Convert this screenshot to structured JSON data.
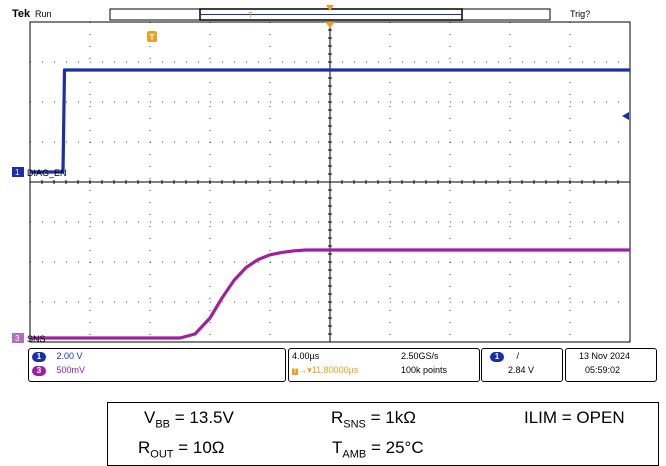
{
  "header": {
    "brand": "Tek",
    "run_state": "Run",
    "trigger_state": "Trig?"
  },
  "markers": {
    "trigger_position_label": "T"
  },
  "channels": [
    {
      "id": "1",
      "label": "DIAG_EN",
      "color": "#1a2ea8",
      "scale": "2.00 V"
    },
    {
      "id": "3",
      "label": "SNS",
      "color": "#a020a0",
      "scale": "500mV"
    }
  ],
  "status": {
    "timebase": "4.00µs",
    "trigger_offset": "11.80000µs",
    "sample_rate": "2.50GS/s",
    "record_length": "100k points",
    "trigger_channel": "1",
    "trigger_slope": "/",
    "trigger_level": "2.84 V",
    "date": "13 Nov 2024",
    "time": "05:59:02"
  },
  "conditions": {
    "vbb": {
      "sym": "V",
      "sub": "BB",
      "val": " = 13.5V"
    },
    "rsns": {
      "sym": "R",
      "sub": "SNS",
      "val": " = 1kΩ"
    },
    "ilim": "ILIM = OPEN",
    "rout": {
      "sym": "R",
      "sub": "OUT",
      "val": " = 10Ω"
    },
    "tamb": {
      "sym": "T",
      "sub": "AMB",
      "val": " = 25°C"
    }
  },
  "colors": {
    "ch1": "#1a2ea8",
    "ch3": "#a020a0",
    "trigger_marker": "#f0a020",
    "grid": "#000000"
  },
  "chart_data": {
    "type": "line",
    "x_units": "µs",
    "xlim": [
      -20,
      20
    ],
    "grid": {
      "h_divs": 10,
      "v_divs": 8
    },
    "series": [
      {
        "name": "DIAG_EN",
        "channel": "1",
        "units": "V",
        "volts_per_div": 2.0,
        "x": [
          -20,
          -17.8,
          -17.7,
          20
        ],
        "y": [
          0,
          0,
          5.1,
          5.1
        ]
      },
      {
        "name": "SNS",
        "channel": "3",
        "units": "V",
        "volts_per_div": 0.5,
        "x": [
          -20,
          -10,
          -9.0,
          -8.0,
          -7.2,
          -6.4,
          -5.6,
          -4.8,
          -4.0,
          -3.2,
          -2.4,
          -1.6,
          -0.8,
          0,
          4,
          20
        ],
        "y": [
          0,
          0,
          0.05,
          0.25,
          0.5,
          0.72,
          0.88,
          0.98,
          1.04,
          1.07,
          1.09,
          1.1,
          1.1,
          1.1,
          1.1,
          1.1
        ]
      }
    ]
  }
}
